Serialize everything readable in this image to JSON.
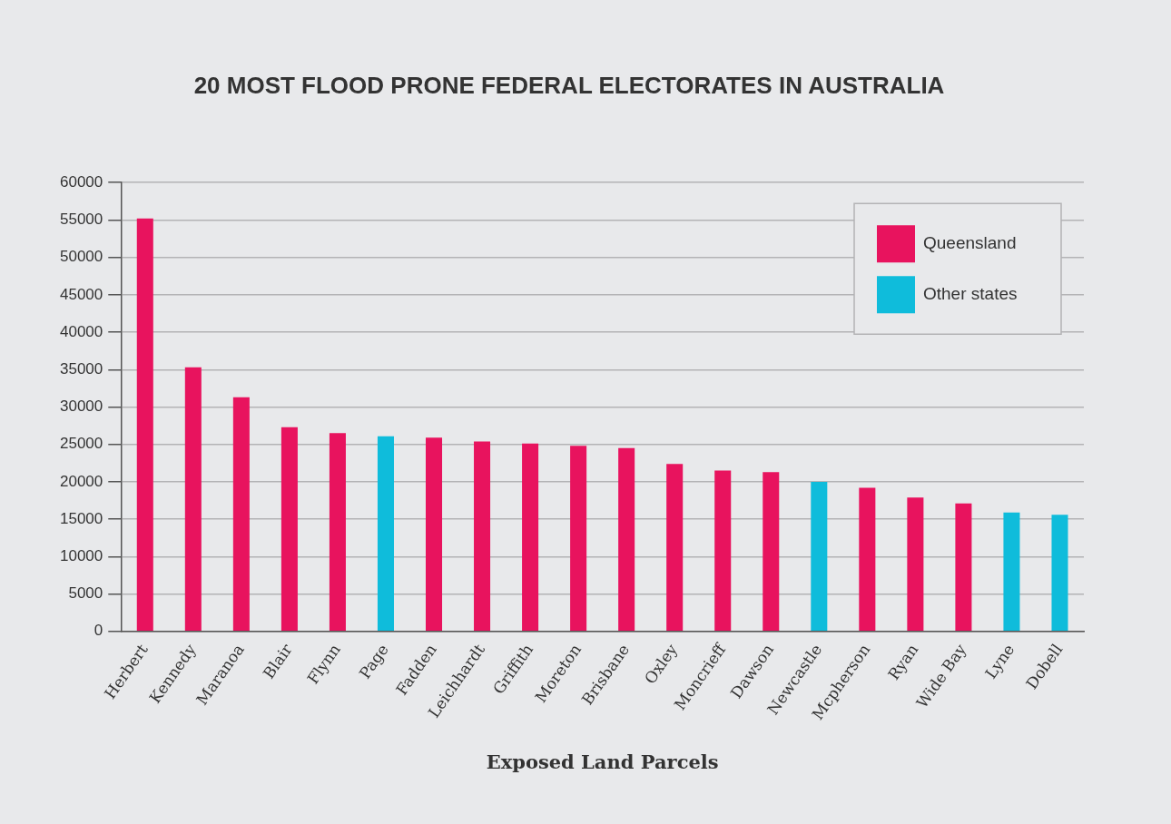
{
  "chart_data": {
    "type": "bar",
    "title": "20 MOST FLOOD PRONE FEDERAL ELECTORATES IN AUSTRALIA",
    "xlabel": "Exposed Land Parcels",
    "categories": [
      "Herbert",
      "Kennedy",
      "Maranoa",
      "Blair",
      "Flynn",
      "Page",
      "Fadden",
      "Leichhardt",
      "Griffith",
      "Moreton",
      "Brisbane",
      "Oxley",
      "Moncrieff",
      "Dawson",
      "Newcastle",
      "Mcpherson",
      "Ryan",
      "Wide Bay",
      "Lyne",
      "Dobell"
    ],
    "series": [
      {
        "name": "Queensland",
        "color": "#e8135e",
        "values": [
          55200,
          35300,
          31300,
          27300,
          26500,
          null,
          25900,
          25400,
          25100,
          24800,
          24500,
          22400,
          21500,
          21300,
          null,
          19200,
          17900,
          17100,
          null,
          null
        ]
      },
      {
        "name": "Other states",
        "color": "#0fbcdb",
        "values": [
          null,
          null,
          null,
          null,
          null,
          26100,
          null,
          null,
          null,
          null,
          null,
          null,
          null,
          null,
          20000,
          null,
          null,
          null,
          15900,
          15600
        ]
      }
    ],
    "ylim": [
      0,
      60000
    ],
    "yticks": [
      0,
      5000,
      10000,
      15000,
      20000,
      25000,
      30000,
      35000,
      40000,
      45000,
      50000,
      55000,
      60000
    ],
    "grid": "y",
    "legend": "top right"
  }
}
